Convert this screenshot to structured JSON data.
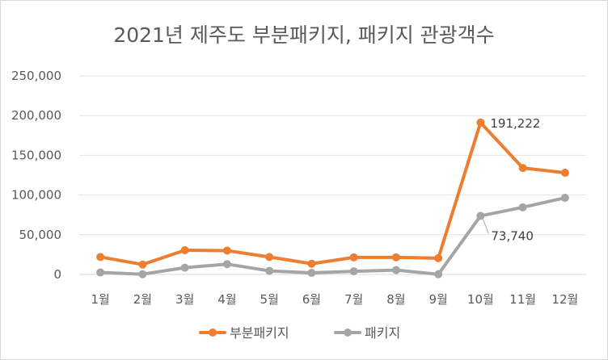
{
  "chart_data": {
    "type": "line",
    "title": "2021년 제주도 부분패키지, 패키지 관광객수",
    "xlabel": "",
    "ylabel": "",
    "categories": [
      "1월",
      "2월",
      "3월",
      "4월",
      "5월",
      "6월",
      "7월",
      "8월",
      "9월",
      "10월",
      "11월",
      "12월"
    ],
    "ylim": [
      0,
      250000
    ],
    "yticks": [
      0,
      50000,
      100000,
      150000,
      200000,
      250000
    ],
    "ytick_labels": [
      "0",
      "50,000",
      "100,000",
      "150,000",
      "200,000",
      "250,000"
    ],
    "grid": true,
    "legend_position": "bottom",
    "series": [
      {
        "name": "부분패키지",
        "color": "#ED7D31",
        "values": [
          22000,
          12500,
          30500,
          30000,
          22000,
          13500,
          21500,
          21500,
          20500,
          191222,
          134000,
          128000
        ],
        "annotations": [
          {
            "index": 9,
            "label": "191,222"
          }
        ]
      },
      {
        "name": "패키지",
        "color": "#A5A5A5",
        "values": [
          2500,
          300,
          8500,
          13000,
          4500,
          2000,
          4000,
          5500,
          200,
          73740,
          84500,
          96500
        ],
        "annotations": [
          {
            "index": 9,
            "label": "73,740"
          }
        ]
      }
    ]
  }
}
